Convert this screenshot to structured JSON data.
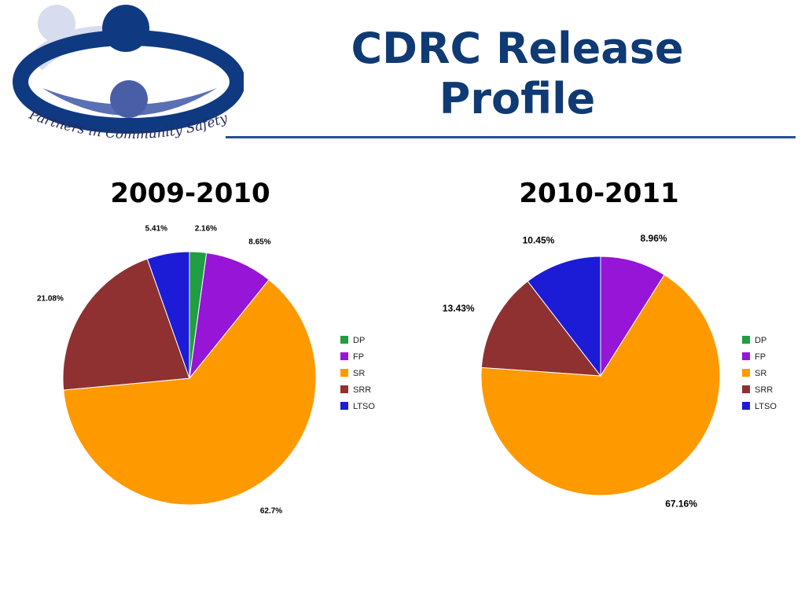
{
  "logo": {
    "text": "Partners in Community Safety"
  },
  "title": "CDRC Release Profile",
  "chart_data": [
    {
      "type": "pie",
      "title": "2009-2010",
      "categories": [
        "DP",
        "FP",
        "SR",
        "SRR",
        "LTSO"
      ],
      "values": [
        2.16,
        8.65,
        62.7,
        21.08,
        5.41
      ],
      "labels": [
        "2.16%",
        "8.65%",
        "62.7%",
        "21.08%",
        "5.41%"
      ],
      "colors": [
        "#1f9e43",
        "#9615d6",
        "#ff9900",
        "#8f3131",
        "#1c1cd6"
      ],
      "legend_position": "right"
    },
    {
      "type": "pie",
      "title": "2010-2011",
      "categories": [
        "DP",
        "FP",
        "SR",
        "SRR",
        "LTSO"
      ],
      "values": [
        0,
        8.96,
        67.16,
        13.43,
        10.45
      ],
      "labels": [
        "",
        "8.96%",
        "67.16%",
        "13.43%",
        "10.45%"
      ],
      "colors": [
        "#1f9e43",
        "#9615d6",
        "#ff9900",
        "#8f3131",
        "#1c1cd6"
      ],
      "legend_position": "right"
    }
  ]
}
